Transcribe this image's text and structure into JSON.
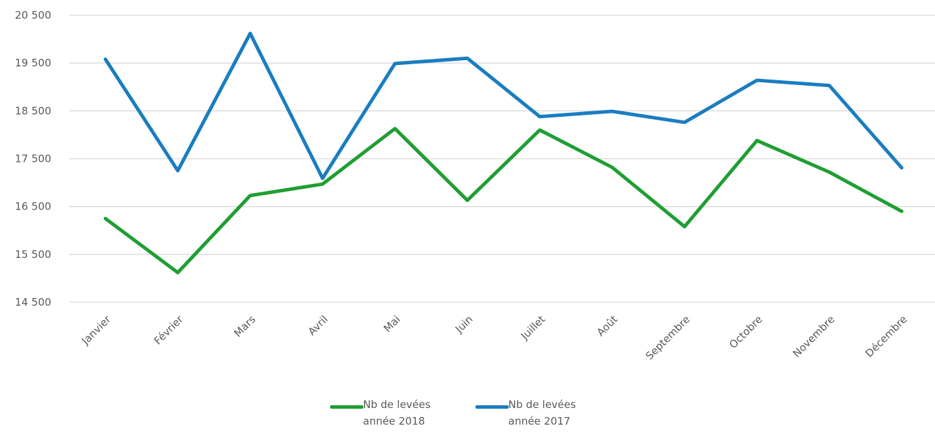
{
  "chart_data": {
    "type": "line",
    "categories": [
      "Janvier",
      "Février",
      "Mars",
      "Avril",
      "Mai",
      "Juin",
      "Juillet",
      "Août",
      "Septembre",
      "Octobre",
      "Novembre",
      "Décembre"
    ],
    "series": [
      {
        "name": "Nb de levées année 2018",
        "color": "#1f9e32",
        "values": [
          16250,
          15120,
          16730,
          16970,
          18130,
          16630,
          18100,
          17320,
          16080,
          17880,
          17220,
          16400
        ]
      },
      {
        "name": "Nb de levées année 2017",
        "color": "#1a7dc0",
        "values": [
          19580,
          17250,
          20120,
          17090,
          19490,
          19600,
          18380,
          18490,
          18260,
          19140,
          19030,
          17310
        ]
      }
    ],
    "ylim": [
      14500,
      20500
    ],
    "yticks": [
      {
        "value": 14500,
        "label": "14 500"
      },
      {
        "value": 15500,
        "label": "15 500"
      },
      {
        "value": 16500,
        "label": "16 500"
      },
      {
        "value": 17500,
        "label": "17 500"
      },
      {
        "value": 18500,
        "label": "18 500"
      },
      {
        "value": 19500,
        "label": "19 500"
      },
      {
        "value": 20500,
        "label": "20 500"
      }
    ],
    "grid": true,
    "legend": "bottom"
  }
}
